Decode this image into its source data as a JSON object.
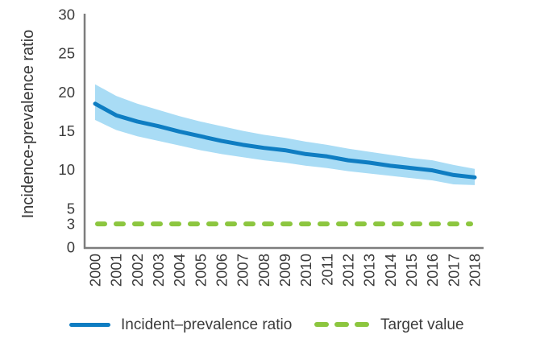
{
  "chart_data": {
    "type": "line",
    "ylabel": "Incidence-prevalence ratio",
    "xlabel": "",
    "x": [
      2000,
      2001,
      2002,
      2003,
      2004,
      2005,
      2006,
      2007,
      2008,
      2009,
      2010,
      2011,
      2012,
      2013,
      2014,
      2015,
      2016,
      2017,
      2018
    ],
    "series": [
      {
        "name": "Incident–prevalence ratio",
        "style": "solid",
        "color": "#0e7dc2",
        "values": [
          18.5,
          17.0,
          16.2,
          15.6,
          14.9,
          14.3,
          13.7,
          13.2,
          12.8,
          12.5,
          12.0,
          11.7,
          11.2,
          10.9,
          10.5,
          10.2,
          9.9,
          9.3,
          9.0
        ]
      },
      {
        "name": "Target value",
        "style": "dashed",
        "color": "#8cc63f",
        "constant_value": 3,
        "values": [
          3,
          3,
          3,
          3,
          3,
          3,
          3,
          3,
          3,
          3,
          3,
          3,
          3,
          3,
          3,
          3,
          3,
          3,
          3
        ]
      }
    ],
    "ci_band": {
      "for_series": "Incident–prevalence ratio",
      "color": "#a9dcf5",
      "upper": [
        21.0,
        19.5,
        18.5,
        17.7,
        16.9,
        16.2,
        15.6,
        15.0,
        14.5,
        14.1,
        13.6,
        13.2,
        12.7,
        12.3,
        11.9,
        11.5,
        11.2,
        10.6,
        10.1
      ],
      "lower": [
        16.4,
        15.1,
        14.3,
        13.7,
        13.1,
        12.5,
        12.0,
        11.6,
        11.2,
        10.9,
        10.5,
        10.2,
        9.8,
        9.5,
        9.2,
        8.9,
        8.6,
        8.1,
        8.0
      ]
    },
    "ylim": [
      0,
      30
    ],
    "yticks": [
      0,
      3,
      5,
      10,
      15,
      20,
      25,
      30
    ],
    "grid": false,
    "legend_position": "bottom"
  },
  "colors": {
    "axis": "#7d7d7d",
    "text": "#3b3b3b"
  }
}
